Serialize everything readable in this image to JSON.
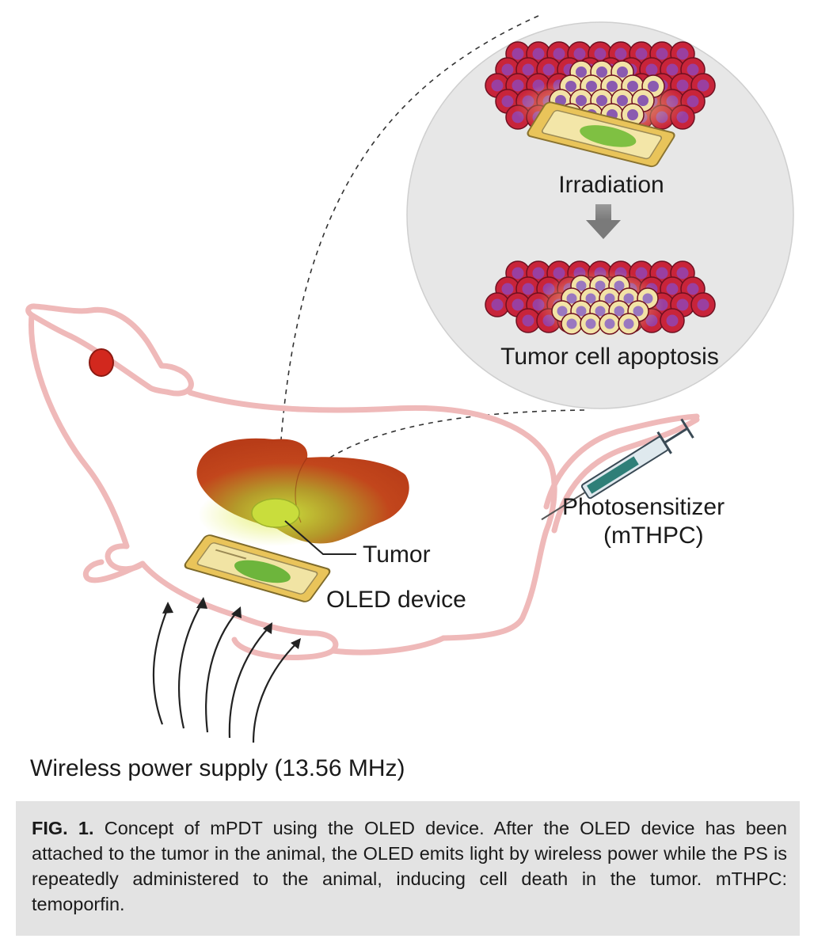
{
  "figure": {
    "labels": {
      "irradiation": "Irradiation",
      "apoptosis": "Tumor cell apoptosis",
      "tumor": "Tumor",
      "oled": "OLED device",
      "photosensitizer": "Photosensitizer",
      "photosensitizer_abbrev": "(mTHPC)",
      "wireless": "Wireless power supply (13.56 MHz)"
    },
    "colors": {
      "rat_outline": "#efb9b9",
      "tumor_cell_red": "#c8243a",
      "tumor_cell_nucleus": "#9a3fa0",
      "apoptotic_cell": "#f2e3a6",
      "liver": "#c2461c",
      "tumor_glow": "#b8d63a",
      "oled_frame": "#e8c25a",
      "syringe_liquid": "#2f7f78",
      "inset_bg": "#e6e6e6"
    },
    "icons": [
      "rat-illustration",
      "liver-icon",
      "oled-device-icon",
      "syringe-icon",
      "radio-wave-arrows-icon",
      "down-arrow-icon"
    ]
  },
  "caption": {
    "label": "FIG. 1.",
    "text": " Concept of mPDT using the OLED device. After the OLED device has been attached to the tumor in the animal, the OLED emits light by wireless power while the PS is repeatedly administered to the animal, inducing cell death in the tumor. mTHPC: temoporfin."
  }
}
